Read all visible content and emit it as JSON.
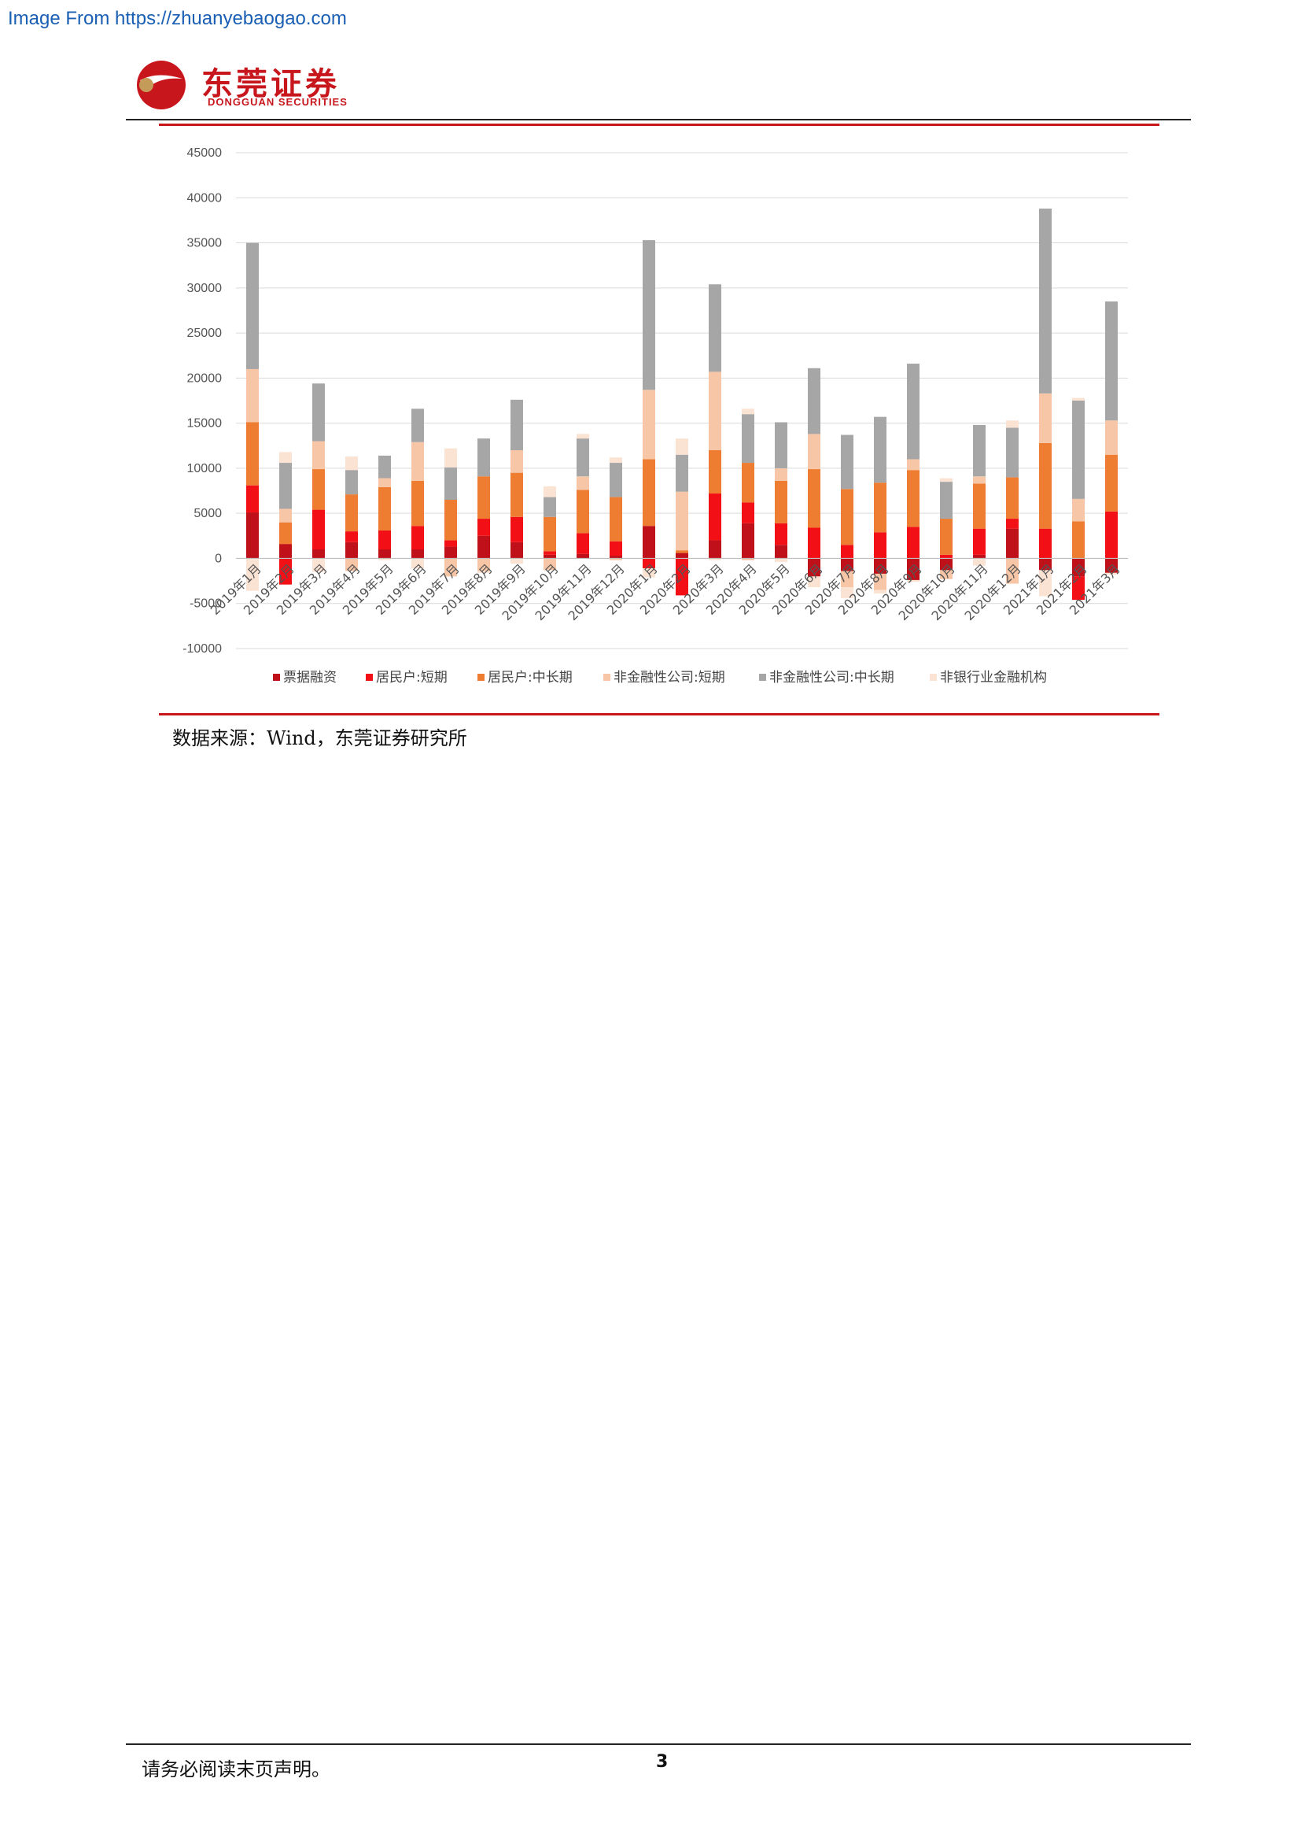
{
  "header": {
    "watermark": "Image From https://zhuanyebaogao.com",
    "logo_cn": "东莞证券",
    "logo_en": "DONGGUAN SECURITIES"
  },
  "colors": {
    "brand_red": "#c8161d",
    "series": [
      "#c0111b",
      "#f20f16",
      "#ee7d31",
      "#f7c6a6",
      "#a6a6a6",
      "#fbe3d4"
    ]
  },
  "chart_data": {
    "type": "bar",
    "stacked": true,
    "grid": true,
    "legend_position": "bottom",
    "ylim": [
      -10000,
      45000
    ],
    "yticks": [
      "45000",
      "40000",
      "35000",
      "30000",
      "25000",
      "20000",
      "15000",
      "10000",
      "5000",
      "0",
      "-5000",
      "-10000"
    ],
    "categories": [
      "2019年1月",
      "2019年2月",
      "2019年3月",
      "2019年4月",
      "2019年5月",
      "2019年6月",
      "2019年7月",
      "2019年8月",
      "2019年9月",
      "2019年10月",
      "2019年11月",
      "2019年12月",
      "2020年1月",
      "2020年2月",
      "2020年3月",
      "2020年4月",
      "2020年5月",
      "2020年6月",
      "2020年7月",
      "2020年8月",
      "2020年9月",
      "2020年10月",
      "2020年11月",
      "2020年12月",
      "2021年1月",
      "2021年2月",
      "2021年3月"
    ],
    "series": [
      {
        "name": "票据融资",
        "values": [
          5100,
          1600,
          1000,
          1800,
          1000,
          1000,
          1300,
          2500,
          1800,
          400,
          500,
          300,
          3600,
          600,
          2000,
          3900,
          1500,
          -2000,
          -1400,
          -1700,
          -2400,
          -1300,
          400,
          3300,
          -1300,
          -2000,
          -1600
        ]
      },
      {
        "name": "居民户:短期",
        "values": [
          3000,
          -2900,
          4400,
          1200,
          2100,
          2600,
          700,
          1900,
          2800,
          400,
          2300,
          1600,
          -1100,
          -4100,
          5200,
          2300,
          2400,
          3400,
          1500,
          2900,
          3500,
          400,
          2900,
          1100,
          3300,
          -2600,
          5200
        ]
      },
      {
        "name": "居民户:中长期",
        "values": [
          7000,
          2400,
          4500,
          4100,
          4800,
          5000,
          4500,
          4700,
          4900,
          3800,
          4800,
          4900,
          7400,
          300,
          4800,
          4400,
          4700,
          6500,
          6200,
          5500,
          6300,
          4000,
          5000,
          4600,
          9500,
          4100,
          6300
        ]
      },
      {
        "name": "非金融性公司:短期",
        "values": [
          5900,
          1500,
          3100,
          -1400,
          1000,
          4300,
          -2000,
          -1400,
          2500,
          -1300,
          1500,
          -200,
          7700,
          6500,
          8700,
          -200,
          1400,
          3900,
          -1800,
          -1800,
          1200,
          -1000,
          800,
          -2800,
          5500,
          2500,
          3800
        ]
      },
      {
        "name": "非金融性公司:中长期",
        "values": [
          14000,
          5100,
          6400,
          2700,
          2500,
          3700,
          3600,
          4200,
          5600,
          2200,
          4200,
          3800,
          16600,
          4100,
          9700,
          5400,
          5100,
          7300,
          6000,
          7300,
          10600,
          4100,
          5700,
          5500,
          20500,
          10900,
          13200
        ]
      },
      {
        "name": "非银行业金融机构",
        "values": [
          -3600,
          1200,
          -1500,
          1500,
          -200,
          -1100,
          2100,
          -200,
          -600,
          1200,
          500,
          600,
          -1000,
          1800,
          -200,
          600,
          -400,
          -1200,
          -1200,
          -400,
          -200,
          400,
          -800,
          800,
          -2900,
          300,
          -200
        ]
      }
    ]
  },
  "source": "数据来源：Wind，东莞证券研究所",
  "footer": {
    "note": "请务必阅读末页声明。",
    "page": "3"
  }
}
